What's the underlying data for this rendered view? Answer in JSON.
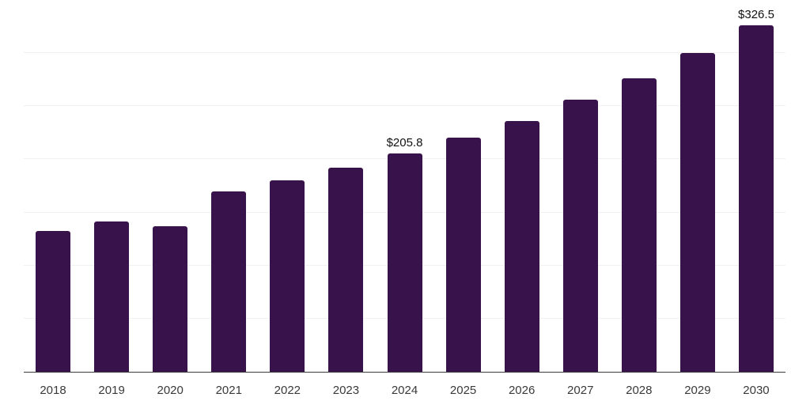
{
  "chart_data": {
    "type": "bar",
    "title": "",
    "xlabel": "",
    "ylabel": "",
    "categories": [
      "2018",
      "2019",
      "2020",
      "2021",
      "2022",
      "2023",
      "2024",
      "2025",
      "2026",
      "2027",
      "2028",
      "2029",
      "2030"
    ],
    "values": [
      132.6,
      141.5,
      137.0,
      170.0,
      180.2,
      192.2,
      205.8,
      220.4,
      236.3,
      256.2,
      276.3,
      300.0,
      326.5
    ],
    "data_labels": [
      null,
      null,
      null,
      null,
      null,
      null,
      "$205.8",
      null,
      null,
      null,
      null,
      null,
      "$326.5"
    ],
    "ylim": [
      0,
      350
    ],
    "gridline_step": 50,
    "grid": true,
    "legend": false,
    "y_tick_labels_visible": false,
    "colors": {
      "bar": "#38124a",
      "gridline": "#f1f1f1",
      "axis_line": "#3c3c3c",
      "tick_label": "#3a3a3a",
      "data_label": "#111111",
      "background": "#ffffff"
    }
  }
}
